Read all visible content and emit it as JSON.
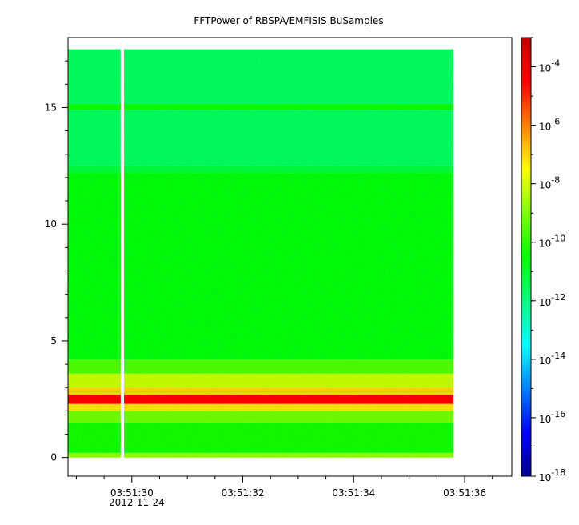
{
  "chart_data": {
    "type": "heatmap",
    "title": "FFTPower of RBSPA/EMFISIS  BuSamples",
    "xlabel": "",
    "ylabel": "",
    "date_label": "2012-11-24",
    "x_range": [
      "03:51:28.85",
      "03:51:36.85"
    ],
    "y_range": [
      -0.8,
      18.0
    ],
    "data_x_extent": [
      "03:51:28.85",
      "03:51:35.80"
    ],
    "data_y_extent": [
      0.0,
      17.5
    ],
    "data_gap": {
      "start": "03:51:29.80",
      "end": "03:51:29.86"
    },
    "x_ticks": [
      {
        "time": "03:51:30",
        "label": "03:51:30"
      },
      {
        "time": "03:51:32",
        "label": "03:51:32"
      },
      {
        "time": "03:51:34",
        "label": "03:51:34"
      },
      {
        "time": "03:51:36",
        "label": "03:51:36"
      }
    ],
    "x_minor_tick_interval_s": 0.5,
    "y_ticks": [
      {
        "value": 0,
        "label": "0"
      },
      {
        "value": 5,
        "label": "5"
      },
      {
        "value": 10,
        "label": "10"
      },
      {
        "value": 15,
        "label": "15"
      }
    ],
    "colorbar": {
      "scale": "log",
      "range": [
        1e-18,
        0.001
      ],
      "ticks": [
        {
          "exp": -4,
          "base": "10",
          "sup": "-4"
        },
        {
          "exp": -6,
          "base": "10",
          "sup": "-6"
        },
        {
          "exp": -8,
          "base": "10",
          "sup": "-8"
        },
        {
          "exp": -10,
          "base": "10",
          "sup": "-10"
        },
        {
          "exp": -12,
          "base": "10",
          "sup": "-12"
        },
        {
          "exp": -14,
          "base": "10",
          "sup": "-14"
        },
        {
          "exp": -16,
          "base": "10",
          "sup": "-16"
        },
        {
          "exp": -18,
          "base": "10",
          "sup": "-18"
        }
      ],
      "colors": [
        "#00008f",
        "#0000ff",
        "#0080ff",
        "#00ffff",
        "#00ff80",
        "#00ff00",
        "#80ff00",
        "#ffff00",
        "#ff8000",
        "#ff0000",
        "#c00000"
      ]
    },
    "frequency_bands": [
      {
        "from": 0.0,
        "to": 0.2,
        "log_power": -8.8
      },
      {
        "from": 0.2,
        "to": 1.5,
        "log_power": -10.3
      },
      {
        "from": 1.5,
        "to": 2.0,
        "log_power": -9.2
      },
      {
        "from": 2.0,
        "to": 2.3,
        "log_power": -7.2
      },
      {
        "from": 2.3,
        "to": 2.7,
        "log_power": -4.5
      },
      {
        "from": 2.7,
        "to": 3.0,
        "log_power": -7.0
      },
      {
        "from": 3.0,
        "to": 3.6,
        "log_power": -8.2
      },
      {
        "from": 3.6,
        "to": 4.2,
        "log_power": -9.6
      },
      {
        "from": 4.2,
        "to": 12.2,
        "log_power": -10.6
      },
      {
        "from": 12.2,
        "to": 12.5,
        "log_power": -11.2
      },
      {
        "from": 12.5,
        "to": 14.9,
        "log_power": -11.6
      },
      {
        "from": 14.9,
        "to": 15.15,
        "log_power": -10.4
      },
      {
        "from": 15.15,
        "to": 17.5,
        "log_power": -11.6
      }
    ]
  }
}
